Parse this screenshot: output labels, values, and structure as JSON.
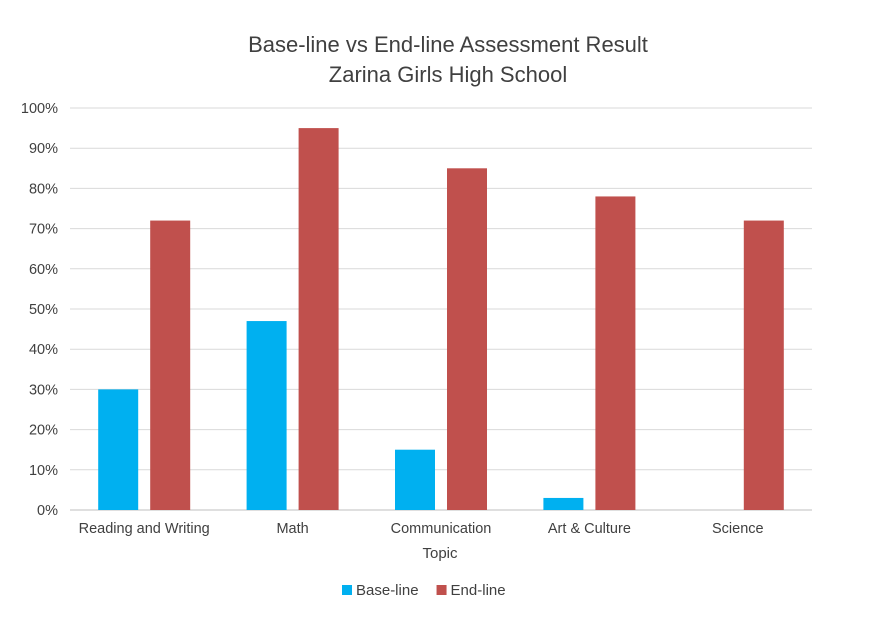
{
  "chart_data": {
    "type": "bar",
    "title": "Base-line vs End-line Assessment Result",
    "subtitle": "Zarina Girls High School",
    "xlabel": "Topic",
    "ylabel": "",
    "categories": [
      "Reading and Writing",
      "Math",
      "Communication",
      "Art & Culture",
      "Science"
    ],
    "series": [
      {
        "name": "Base-line",
        "color": "#00b0f0",
        "values": [
          30,
          47,
          15,
          3,
          0
        ]
      },
      {
        "name": "End-line",
        "color": "#c0504d",
        "values": [
          72,
          95,
          85,
          78,
          72
        ]
      }
    ],
    "ylim": [
      0,
      100
    ],
    "yticks": [
      "0%",
      "10%",
      "20%",
      "30%",
      "40%",
      "50%",
      "60%",
      "70%",
      "80%",
      "90%",
      "100%"
    ],
    "grid": true,
    "legend_position": "bottom"
  }
}
